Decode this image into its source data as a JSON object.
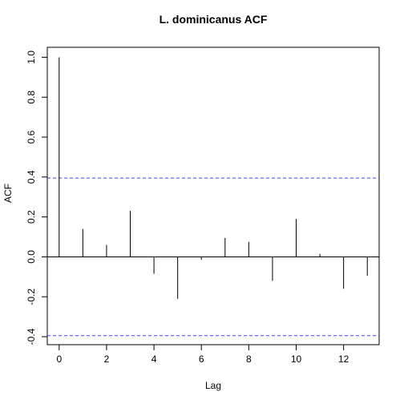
{
  "chart_data": {
    "type": "bar",
    "title": "L. dominicanus ACF",
    "xlabel": "Lag",
    "ylabel": "ACF",
    "x": [
      0,
      1,
      2,
      3,
      4,
      5,
      6,
      7,
      8,
      9,
      10,
      11,
      12,
      13
    ],
    "values": [
      1.0,
      0.14,
      0.06,
      0.23,
      -0.085,
      -0.21,
      -0.015,
      0.095,
      0.075,
      -0.12,
      0.19,
      0.015,
      -0.16,
      -0.095
    ],
    "xlim": [
      -0.5,
      13.5
    ],
    "ylim": [
      -0.44,
      1.05
    ],
    "xticks": [
      0,
      2,
      4,
      6,
      8,
      10,
      12
    ],
    "xtick_labels": [
      "0",
      "2",
      "4",
      "6",
      "8",
      "10",
      "12"
    ],
    "yticks": [
      -0.4,
      -0.2,
      0.0,
      0.2,
      0.4,
      0.6,
      0.8,
      1.0
    ],
    "ytick_labels": [
      "-0.4",
      "-0.2",
      "0.0",
      "0.2",
      "0.4",
      "0.6",
      "0.8",
      "1.0"
    ],
    "confidence_bounds": [
      0.395,
      -0.395
    ],
    "confidence_color": "#4040ff",
    "zero_line": true,
    "grid": false,
    "legend": "none"
  }
}
